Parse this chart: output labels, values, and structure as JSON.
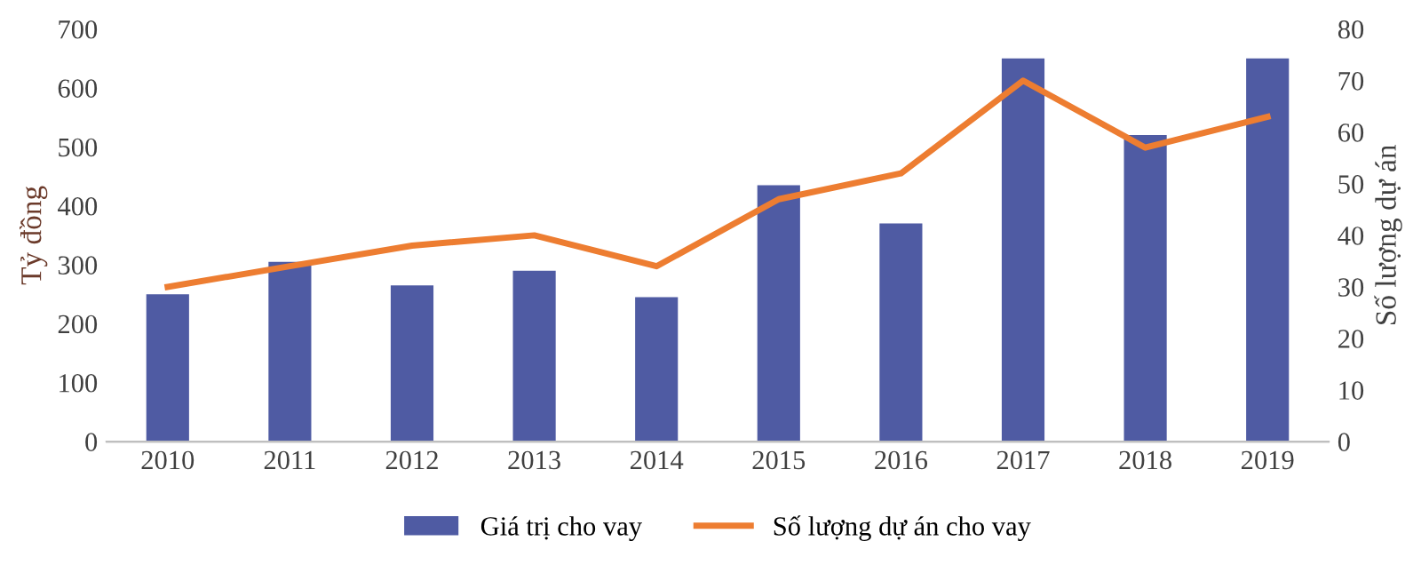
{
  "chart_data": {
    "type": "bar",
    "categories": [
      "2010",
      "2011",
      "2012",
      "2013",
      "2014",
      "2015",
      "2016",
      "2017",
      "2018",
      "2019"
    ],
    "ylabel": "Tỷ đồng",
    "y2label": "Số lượng dự án",
    "series": [
      {
        "name": "Giá trị cho vay",
        "color": "#4f5ba3",
        "values": [
          250,
          305,
          265,
          290,
          245,
          435,
          370,
          650,
          520,
          650
        ]
      },
      {
        "name": "Số lượng dự án cho vay",
        "type": "line",
        "axis": "y2",
        "color": "#ed7d31",
        "values": [
          30,
          34,
          38,
          40,
          34,
          47,
          52,
          70,
          57,
          63
        ]
      }
    ],
    "ylim": [
      0,
      700
    ],
    "yticks": [
      0,
      100,
      200,
      300,
      400,
      500,
      600,
      700
    ],
    "y2lim": [
      0,
      80
    ],
    "y2ticks": [
      0,
      10,
      20,
      30,
      40,
      50,
      60,
      70,
      80
    ],
    "grid": false,
    "legend": "bottom"
  }
}
